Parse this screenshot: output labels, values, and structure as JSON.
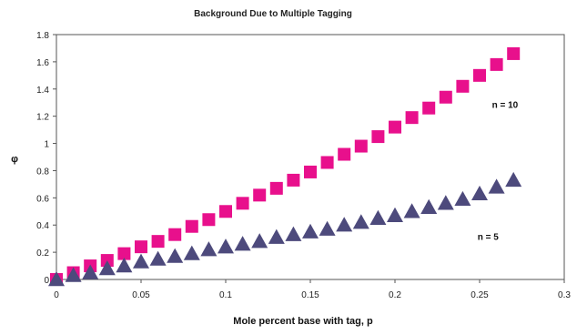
{
  "chart_data": {
    "type": "scatter",
    "title": "Background Due to Multiple Tagging",
    "xlabel": "Mole percent base with tag, p",
    "ylabel": "φ",
    "xlim": [
      0,
      0.3
    ],
    "ylim": [
      0,
      1.8
    ],
    "xticks": [
      "0",
      "0.05",
      "0.1",
      "0.15",
      "0.2",
      "0.25",
      "0.3"
    ],
    "xtick_values": [
      0,
      0.05,
      0.1,
      0.15,
      0.2,
      0.25,
      0.3
    ],
    "yticks": [
      "0",
      "0.2",
      "0.4",
      "0.6",
      "0.8",
      "1",
      "1.2",
      "1.4",
      "1.6",
      "1.8"
    ],
    "ytick_values": [
      0,
      0.2,
      0.4,
      0.6,
      0.8,
      1.0,
      1.2,
      1.4,
      1.6,
      1.8
    ],
    "grid": false,
    "x": [
      0,
      0.01,
      0.02,
      0.03,
      0.04,
      0.05,
      0.06,
      0.07,
      0.08,
      0.09,
      0.1,
      0.11,
      0.12,
      0.13,
      0.14,
      0.15,
      0.16,
      0.17,
      0.18,
      0.19,
      0.2,
      0.21,
      0.22,
      0.23,
      0.24,
      0.25,
      0.26,
      0.27
    ],
    "series": [
      {
        "marker": "square",
        "color": "#e8108c",
        "values": [
          0,
          0.05,
          0.1,
          0.14,
          0.19,
          0.24,
          0.28,
          0.33,
          0.39,
          0.44,
          0.5,
          0.56,
          0.62,
          0.67,
          0.73,
          0.79,
          0.86,
          0.92,
          0.98,
          1.05,
          1.12,
          1.19,
          1.26,
          1.34,
          1.42,
          1.5,
          1.58,
          1.66
        ]
      },
      {
        "marker": "triangle",
        "color": "#4d4a7c",
        "values": [
          0,
          0.03,
          0.05,
          0.08,
          0.1,
          0.13,
          0.15,
          0.17,
          0.19,
          0.22,
          0.24,
          0.26,
          0.28,
          0.31,
          0.33,
          0.35,
          0.37,
          0.4,
          0.42,
          0.45,
          0.47,
          0.5,
          0.53,
          0.56,
          0.59,
          0.63,
          0.68,
          0.73
        ]
      }
    ],
    "annotations": [
      {
        "text": "n = 10",
        "x": 0.265,
        "y": 1.26
      },
      {
        "text": "n = 5",
        "x": 0.255,
        "y": 0.29
      }
    ]
  }
}
